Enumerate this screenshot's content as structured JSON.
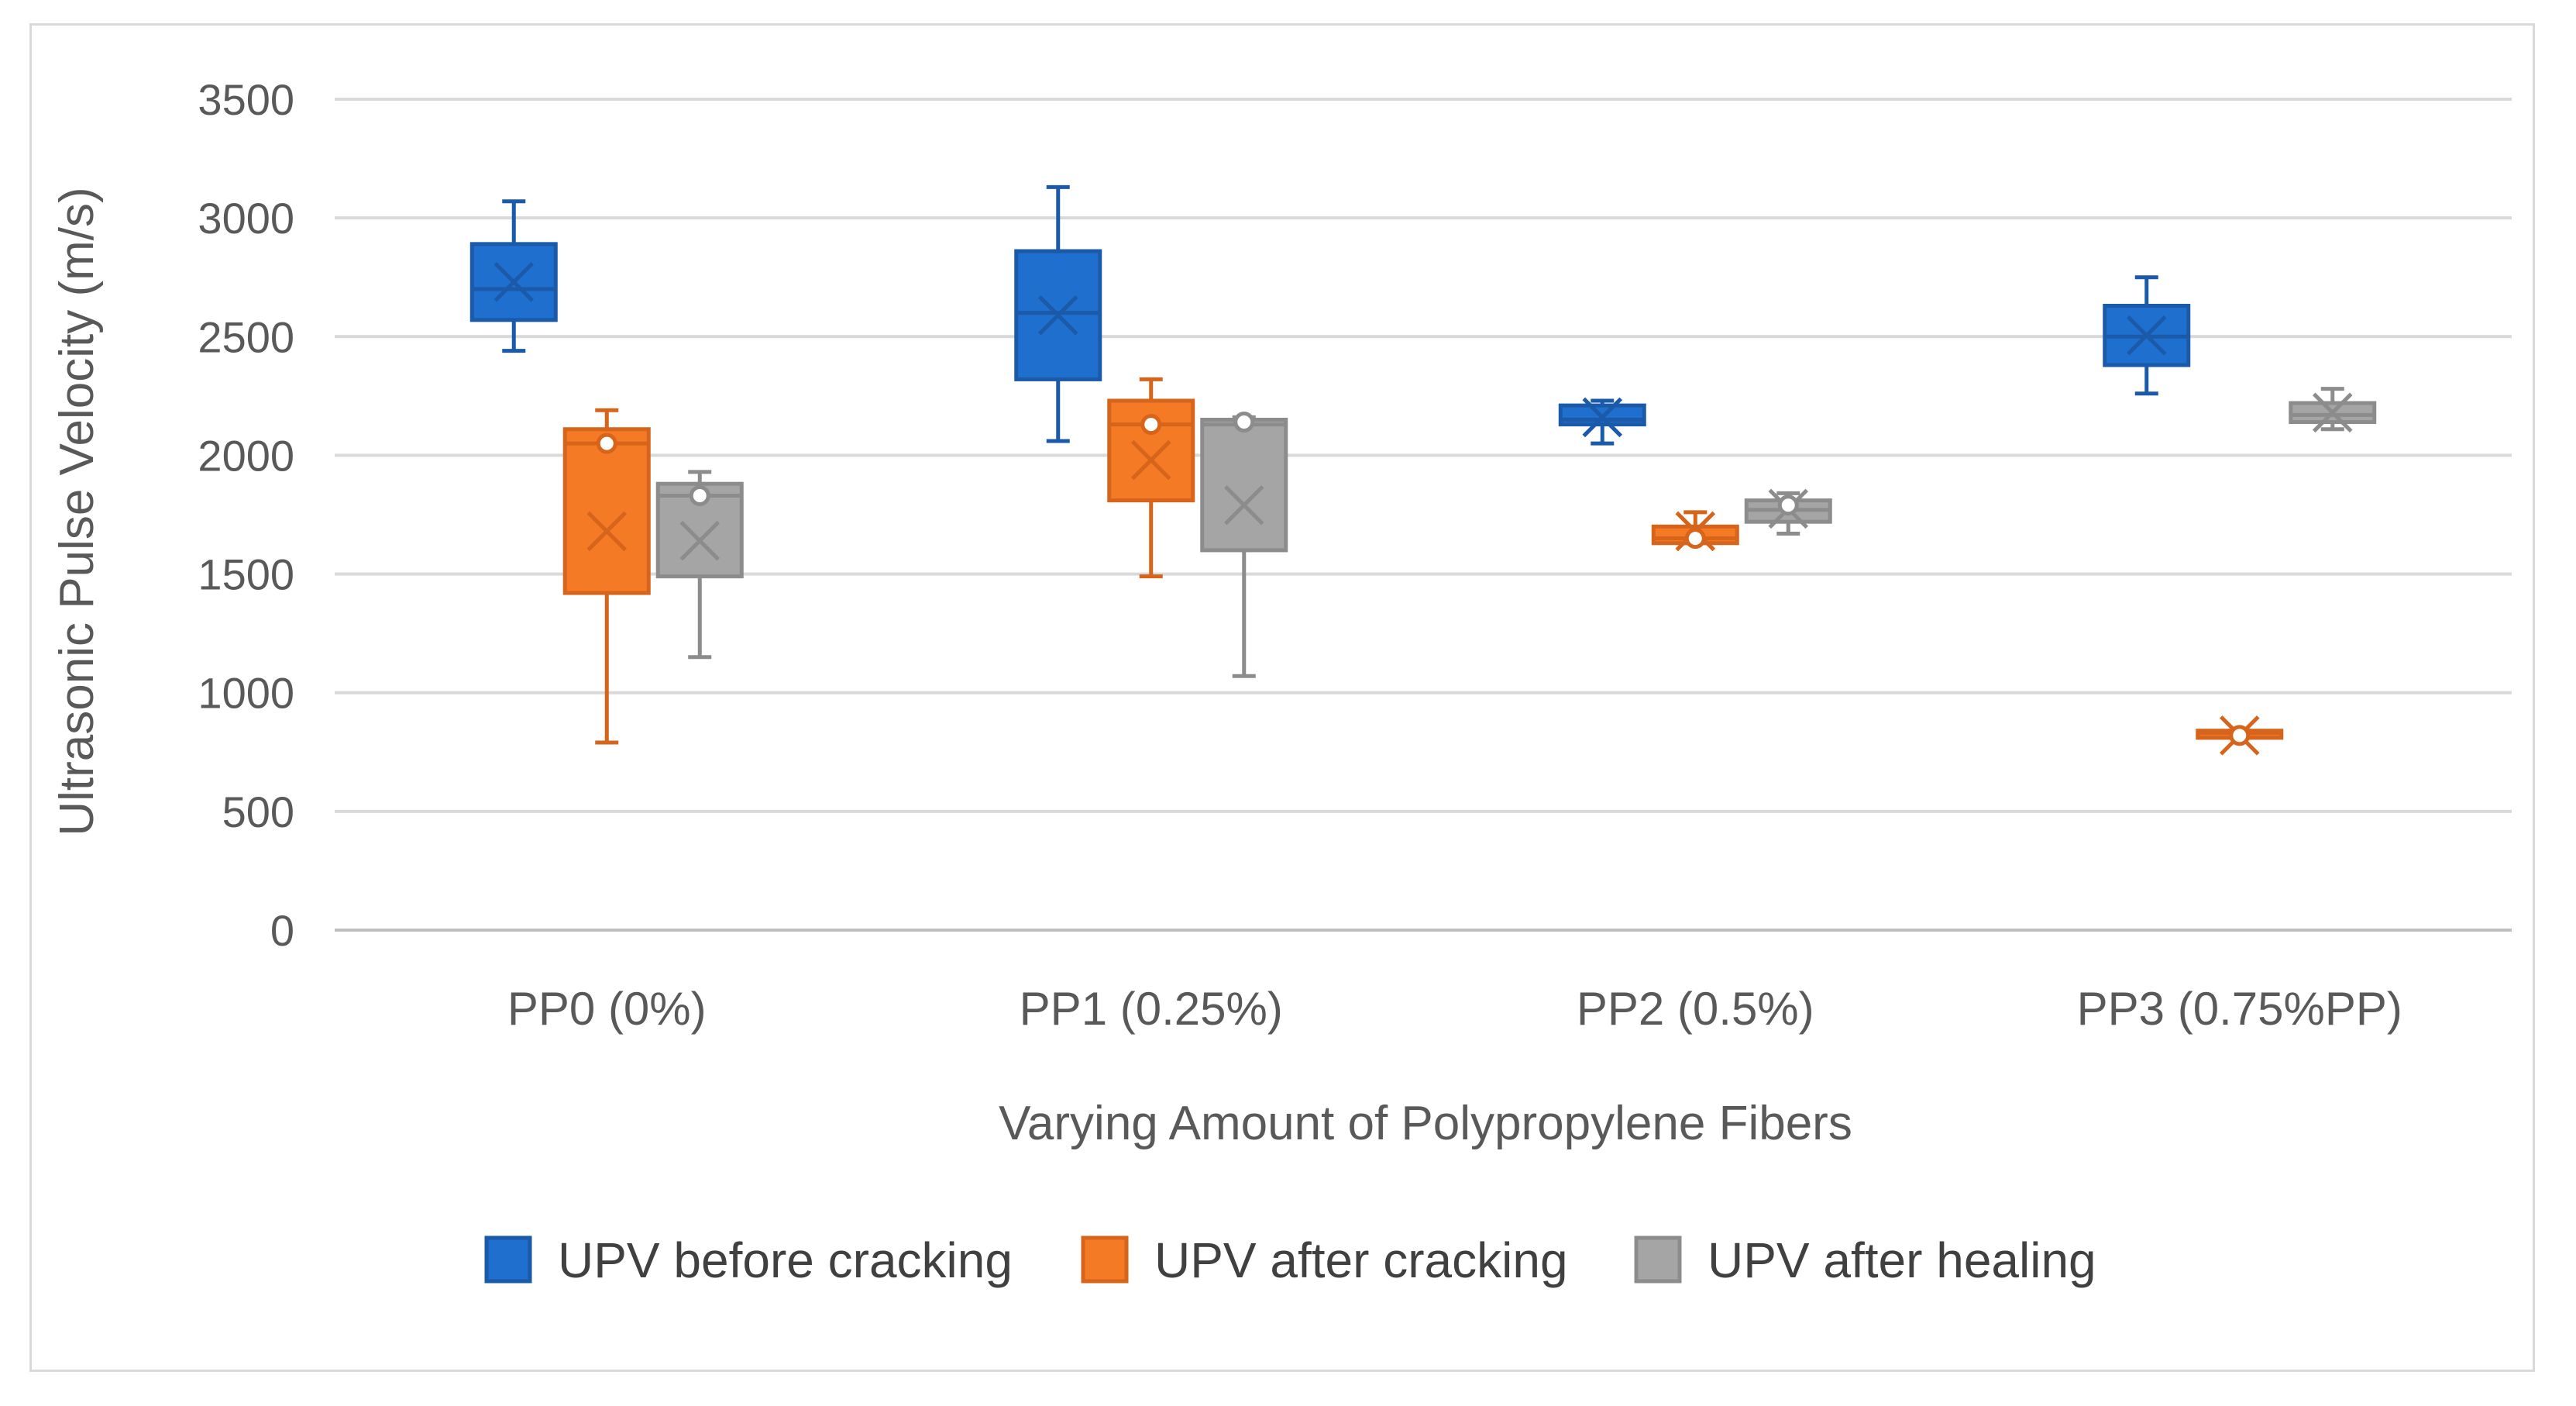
{
  "chart_data": {
    "type": "box",
    "title": "",
    "xlabel": "Varying Amount of Polypropylene Fibers",
    "ylabel": "Ultrasonic Pulse Velocity (m/s)",
    "ylim": [
      0,
      3500
    ],
    "yticks": [
      "0",
      "500",
      "1000",
      "1500",
      "2000",
      "2500",
      "3000",
      "3500"
    ],
    "grid": true,
    "legend_position": "bottom",
    "categories": [
      "PP0 (0%)",
      "PP1 (0.25%)",
      "PP2 (0.5%)",
      "PP3 (0.75%PP)"
    ],
    "series": [
      {
        "name": "UPV before cracking",
        "color": "#1f6fce",
        "stroke": "#1a5aa8",
        "boxes": [
          {
            "min": 2440,
            "q1": 2570,
            "median": 2700,
            "q3": 2890,
            "max": 3070,
            "mean": 2730,
            "outliers": []
          },
          {
            "min": 2060,
            "q1": 2320,
            "median": 2600,
            "q3": 2860,
            "max": 3130,
            "mean": 2590,
            "outliers": []
          },
          {
            "min": 2050,
            "q1": 2130,
            "median": 2150,
            "q3": 2210,
            "max": 2230,
            "mean": 2160,
            "outliers": []
          },
          {
            "min": 2260,
            "q1": 2380,
            "median": 2500,
            "q3": 2630,
            "max": 2750,
            "mean": 2505,
            "outliers": []
          }
        ]
      },
      {
        "name": "UPV after cracking",
        "color": "#f57a26",
        "stroke": "#d6641a",
        "boxes": [
          {
            "min": 790,
            "q1": 1420,
            "median": 2050,
            "q3": 2110,
            "max": 2190,
            "mean": 1680,
            "outliers": [
              2050
            ]
          },
          {
            "min": 1490,
            "q1": 1810,
            "median": 2130,
            "q3": 2230,
            "max": 2320,
            "mean": 1980,
            "outliers": [
              2130
            ]
          },
          {
            "min": 1630,
            "q1": 1630,
            "median": 1650,
            "q3": 1700,
            "max": 1760,
            "mean": 1680,
            "outliers": [
              1650
            ]
          },
          {
            "min": 810,
            "q1": 810,
            "median": 830,
            "q3": 840,
            "max": 840,
            "mean": 820,
            "outliers": [
              820
            ]
          }
        ]
      },
      {
        "name": "UPV after healing",
        "color": "#a5a5a5",
        "stroke": "#8c8c8c",
        "boxes": [
          {
            "min": 1150,
            "q1": 1490,
            "median": 1830,
            "q3": 1880,
            "max": 1930,
            "mean": 1640,
            "outliers": [
              1830
            ]
          },
          {
            "min": 1070,
            "q1": 1600,
            "median": 2130,
            "q3": 2150,
            "max": 2160,
            "mean": 1790,
            "outliers": [
              2140
            ]
          },
          {
            "min": 1670,
            "q1": 1720,
            "median": 1770,
            "q3": 1810,
            "max": 1840,
            "mean": 1775,
            "outliers": [
              1790
            ]
          },
          {
            "min": 2110,
            "q1": 2140,
            "median": 2170,
            "q3": 2220,
            "max": 2280,
            "mean": 2180,
            "outliers": []
          }
        ]
      }
    ]
  }
}
